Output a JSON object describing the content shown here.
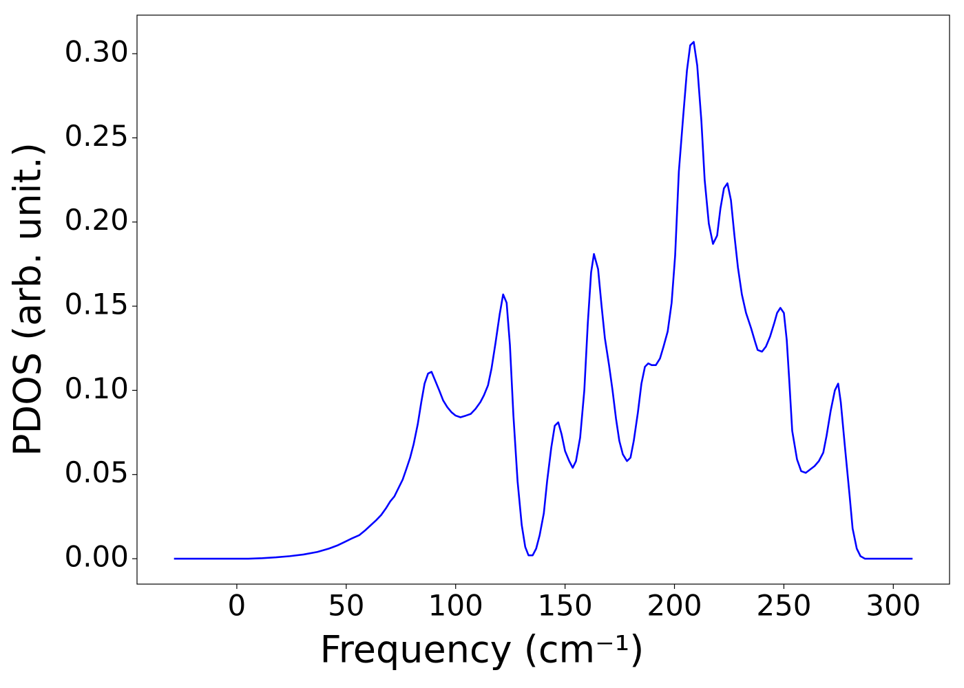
{
  "chart_data": {
    "type": "line",
    "xlabel": "Frequency (cm⁻¹)",
    "ylabel": "PDOS (arb. unit.)",
    "x": [
      -28.7,
      -20,
      -10,
      0,
      5.3,
      11.6,
      17.9,
      24.2,
      30.5,
      36.8,
      42.1,
      46.2,
      49.4,
      52.5,
      56,
      58.8,
      61.3,
      63.8,
      66,
      68.2,
      70.1,
      72,
      73.9,
      75.8,
      77.4,
      79.2,
      80.8,
      82.7,
      84.3,
      85.8,
      87.4,
      89,
      90.6,
      92.5,
      94.3,
      96.2,
      98.1,
      100,
      102.2,
      104.7,
      106.9,
      109.1,
      111.3,
      112.9,
      114.8,
      116.4,
      118.2,
      120.1,
      121.7,
      123.3,
      124.8,
      126.4,
      128.3,
      130.2,
      131.8,
      133.3,
      135.2,
      136.8,
      138.4,
      140.3,
      141.8,
      143.7,
      145.3,
      146.9,
      148.4,
      150,
      151.9,
      153.5,
      155,
      156.9,
      158.8,
      160.4,
      161.9,
      163.2,
      165.1,
      166.7,
      168.2,
      170.1,
      171.7,
      173.3,
      174.8,
      176.4,
      178.3,
      179.9,
      181.4,
      183.3,
      184.9,
      186.5,
      188,
      189.6,
      191.5,
      193.4,
      195,
      196.9,
      198.7,
      200.3,
      202,
      204,
      205.7,
      207.2,
      208.8,
      210.4,
      212.3,
      213.8,
      215.7,
      217.6,
      219.5,
      221,
      222.6,
      224.2,
      225.8,
      227.4,
      229,
      230.8,
      232.7,
      235,
      236.8,
      238,
      240,
      241.8,
      243.7,
      245.6,
      246.9,
      248.4,
      250,
      251.3,
      252.5,
      253.8,
      256,
      257.9,
      260,
      262,
      264,
      266,
      268,
      269.5,
      271.4,
      273.3,
      274.8,
      276,
      278,
      280,
      281.4,
      283.3,
      285,
      287,
      295,
      308.8
    ],
    "series": [
      {
        "color": "#0000ff",
        "values": [
          0,
          0,
          0,
          0,
          0,
          0.0003,
          0.0008,
          0.0015,
          0.0025,
          0.004,
          0.006,
          0.008,
          0.01,
          0.012,
          0.014,
          0.017,
          0.02,
          0.023,
          0.026,
          0.03,
          0.034,
          0.037,
          0.042,
          0.047,
          0.053,
          0.06,
          0.068,
          0.08,
          0.093,
          0.104,
          0.11,
          0.111,
          0.106,
          0.1,
          0.094,
          0.09,
          0.087,
          0.085,
          0.084,
          0.085,
          0.086,
          0.089,
          0.093,
          0.097,
          0.103,
          0.113,
          0.128,
          0.145,
          0.157,
          0.152,
          0.127,
          0.085,
          0.046,
          0.02,
          0.007,
          0.002,
          0.002,
          0.006,
          0.014,
          0.027,
          0.046,
          0.066,
          0.079,
          0.081,
          0.074,
          0.064,
          0.058,
          0.054,
          0.058,
          0.072,
          0.1,
          0.14,
          0.17,
          0.181,
          0.172,
          0.15,
          0.131,
          0.115,
          0.1,
          0.083,
          0.07,
          0.062,
          0.058,
          0.06,
          0.07,
          0.087,
          0.104,
          0.114,
          0.116,
          0.115,
          0.115,
          0.119,
          0.126,
          0.135,
          0.152,
          0.18,
          0.23,
          0.263,
          0.29,
          0.305,
          0.307,
          0.293,
          0.26,
          0.225,
          0.199,
          0.187,
          0.192,
          0.208,
          0.22,
          0.223,
          0.213,
          0.192,
          0.173,
          0.157,
          0.146,
          0.137,
          0.129,
          0.124,
          0.123,
          0.126,
          0.132,
          0.14,
          0.146,
          0.149,
          0.146,
          0.13,
          0.105,
          0.076,
          0.059,
          0.052,
          0.051,
          0.053,
          0.055,
          0.058,
          0.063,
          0.073,
          0.088,
          0.1,
          0.104,
          0.093,
          0.065,
          0.038,
          0.018,
          0.006,
          0.0015,
          0,
          0,
          0
        ]
      }
    ],
    "xlim": [
      -45.6,
      325.7
    ],
    "ylim": [
      -0.0151,
      0.3229
    ],
    "xticks": [
      0,
      50,
      100,
      150,
      200,
      250,
      300
    ],
    "yticks": [
      {
        "value": 0,
        "label": "0.00"
      },
      {
        "value": 0.05,
        "label": "0.05"
      },
      {
        "value": 0.1,
        "label": "0.10"
      },
      {
        "value": 0.15,
        "label": "0.15"
      },
      {
        "value": 0.2,
        "label": "0.20"
      },
      {
        "value": 0.25,
        "label": "0.25"
      },
      {
        "value": 0.3,
        "label": "0.30"
      }
    ],
    "grid": false
  }
}
